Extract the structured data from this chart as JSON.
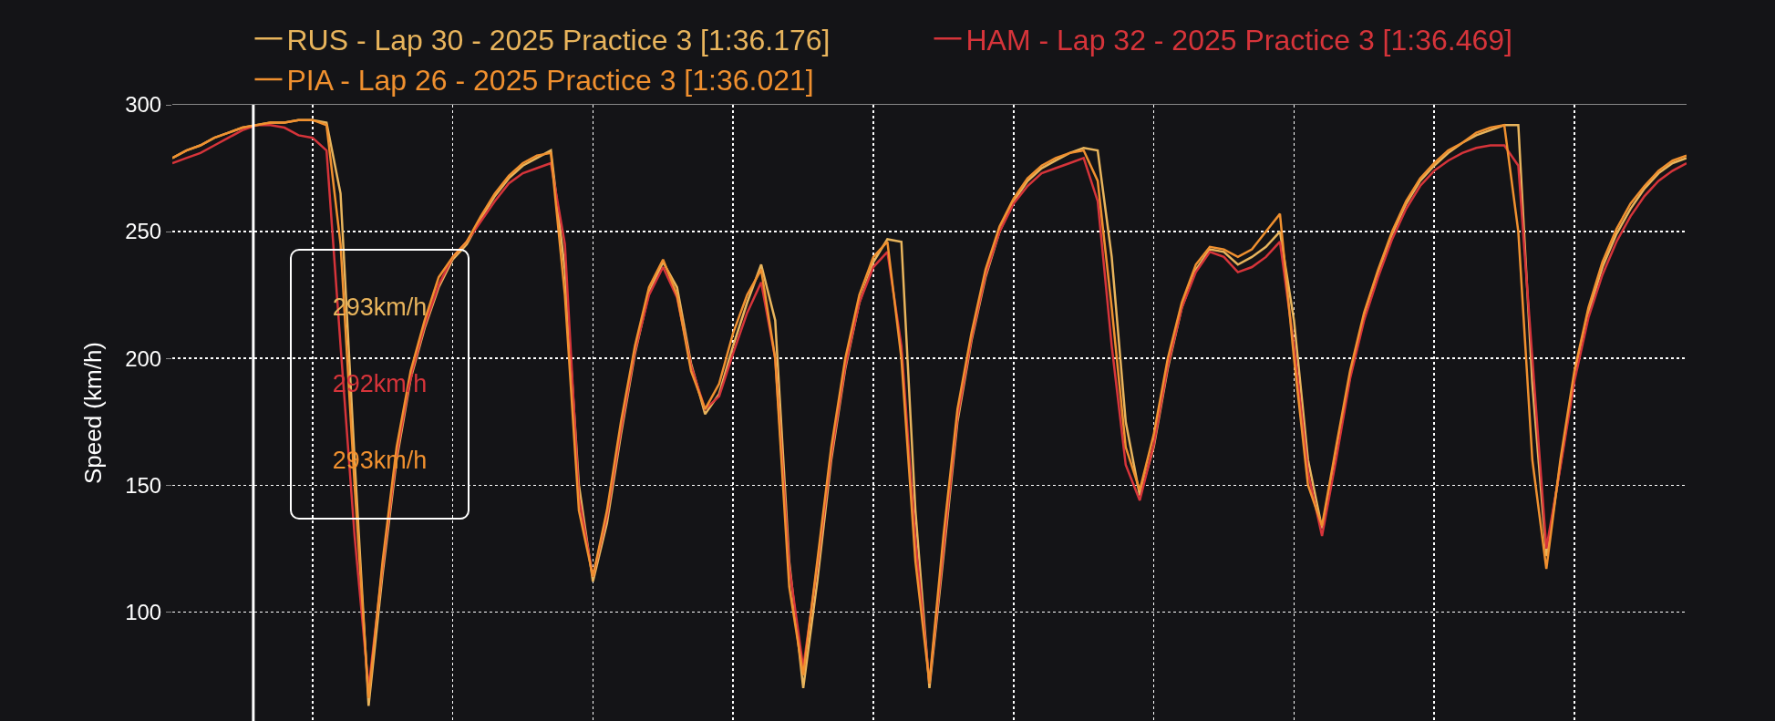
{
  "chart_data": {
    "type": "line",
    "ylabel": "Speed (km/h)",
    "categories": [
      null,
      null,
      null,
      null,
      null,
      null,
      null,
      null,
      null,
      null,
      null,
      null,
      null,
      null,
      null,
      null,
      null,
      null,
      null,
      null,
      null,
      null,
      null,
      null,
      null,
      null,
      null,
      null,
      null,
      null,
      null,
      null,
      null,
      null,
      null,
      null,
      null,
      null,
      null,
      null,
      null,
      null,
      null,
      null,
      null,
      null,
      null,
      null,
      null,
      null,
      null,
      null,
      null,
      null,
      null,
      null,
      null,
      null,
      null,
      null,
      null,
      null,
      null,
      null,
      null,
      null,
      null,
      null,
      null,
      null,
      null,
      null,
      null,
      null,
      null,
      null,
      null,
      null,
      null,
      null,
      null,
      null,
      null,
      null,
      null,
      null,
      null,
      null,
      null,
      null,
      null,
      null,
      null,
      null,
      null,
      null,
      null,
      null,
      null,
      null,
      null,
      null,
      null,
      null,
      null,
      null,
      null,
      null,
      null
    ],
    "series": [
      {
        "name": "RUS - Lap 30 - 2025 Practice 3 [1:36.176]",
        "color": "#e8b45c",
        "values": [
          279,
          282,
          284,
          287,
          289,
          291,
          292,
          293,
          293,
          294,
          294,
          293,
          265,
          160,
          63,
          115,
          160,
          192,
          212,
          228,
          239,
          245,
          255,
          264,
          271,
          276,
          279,
          282,
          235,
          150,
          112,
          135,
          170,
          202,
          226,
          238,
          228,
          198,
          178,
          186,
          205,
          222,
          237,
          215,
          120,
          70,
          112,
          160,
          196,
          222,
          238,
          247,
          246,
          140,
          70,
          122,
          175,
          207,
          232,
          250,
          262,
          270,
          275,
          278,
          281,
          283,
          282,
          240,
          175,
          146,
          165,
          196,
          220,
          235,
          243,
          242,
          237,
          240,
          244,
          250,
          215,
          160,
          133,
          162,
          193,
          216,
          234,
          249,
          261,
          270,
          276,
          281,
          285,
          288,
          290,
          292,
          292,
          190,
          122,
          158,
          193,
          218,
          236,
          249,
          259,
          267,
          273,
          277,
          279
        ]
      },
      {
        "name": "HAM - Lap 32 - 2025 Practice 3 [1:36.469]",
        "color": "#d6343a",
        "values": [
          277,
          279,
          281,
          284,
          287,
          290,
          292,
          292,
          291,
          288,
          287,
          282,
          205,
          130,
          70,
          118,
          162,
          193,
          213,
          229,
          240,
          246,
          254,
          262,
          269,
          273,
          275,
          277,
          245,
          145,
          114,
          138,
          172,
          203,
          225,
          236,
          224,
          197,
          180,
          185,
          202,
          218,
          230,
          200,
          118,
          78,
          118,
          162,
          197,
          222,
          236,
          242,
          205,
          128,
          72,
          125,
          177,
          208,
          233,
          250,
          261,
          268,
          273,
          275,
          277,
          279,
          262,
          205,
          158,
          144,
          166,
          197,
          220,
          234,
          242,
          240,
          234,
          236,
          240,
          246,
          205,
          155,
          130,
          160,
          192,
          215,
          232,
          247,
          259,
          268,
          274,
          278,
          281,
          283,
          284,
          284,
          276,
          200,
          125,
          157,
          191,
          216,
          233,
          246,
          256,
          264,
          270,
          274,
          277
        ]
      },
      {
        "name": "PIA - Lap 26 - 2025 Practice 3 [1:36.021]",
        "color": "#f0902f",
        "values": [
          279,
          282,
          284,
          287,
          289,
          291,
          292,
          293,
          293,
          294,
          294,
          292,
          245,
          150,
          66,
          120,
          165,
          195,
          215,
          232,
          240,
          246,
          256,
          265,
          272,
          277,
          280,
          281,
          225,
          140,
          114,
          140,
          175,
          205,
          228,
          239,
          225,
          195,
          180,
          190,
          210,
          225,
          235,
          200,
          110,
          75,
          120,
          165,
          200,
          225,
          240,
          246,
          200,
          120,
          72,
          130,
          180,
          210,
          235,
          252,
          263,
          271,
          276,
          279,
          281,
          282,
          270,
          220,
          165,
          148,
          170,
          200,
          222,
          237,
          244,
          243,
          240,
          243,
          250,
          257,
          200,
          150,
          134,
          165,
          195,
          218,
          235,
          250,
          262,
          271,
          277,
          282,
          285,
          289,
          291,
          292,
          250,
          160,
          117,
          160,
          195,
          220,
          238,
          251,
          261,
          268,
          274,
          278,
          280
        ]
      }
    ],
    "ylim": [
      57,
      300
    ],
    "yticks": [
      100,
      150,
      200,
      250,
      300
    ],
    "grid": true,
    "legend": "top",
    "line_style": "solid",
    "annotations": [
      "293km/h",
      "292km/h",
      "293km/h"
    ]
  }
}
